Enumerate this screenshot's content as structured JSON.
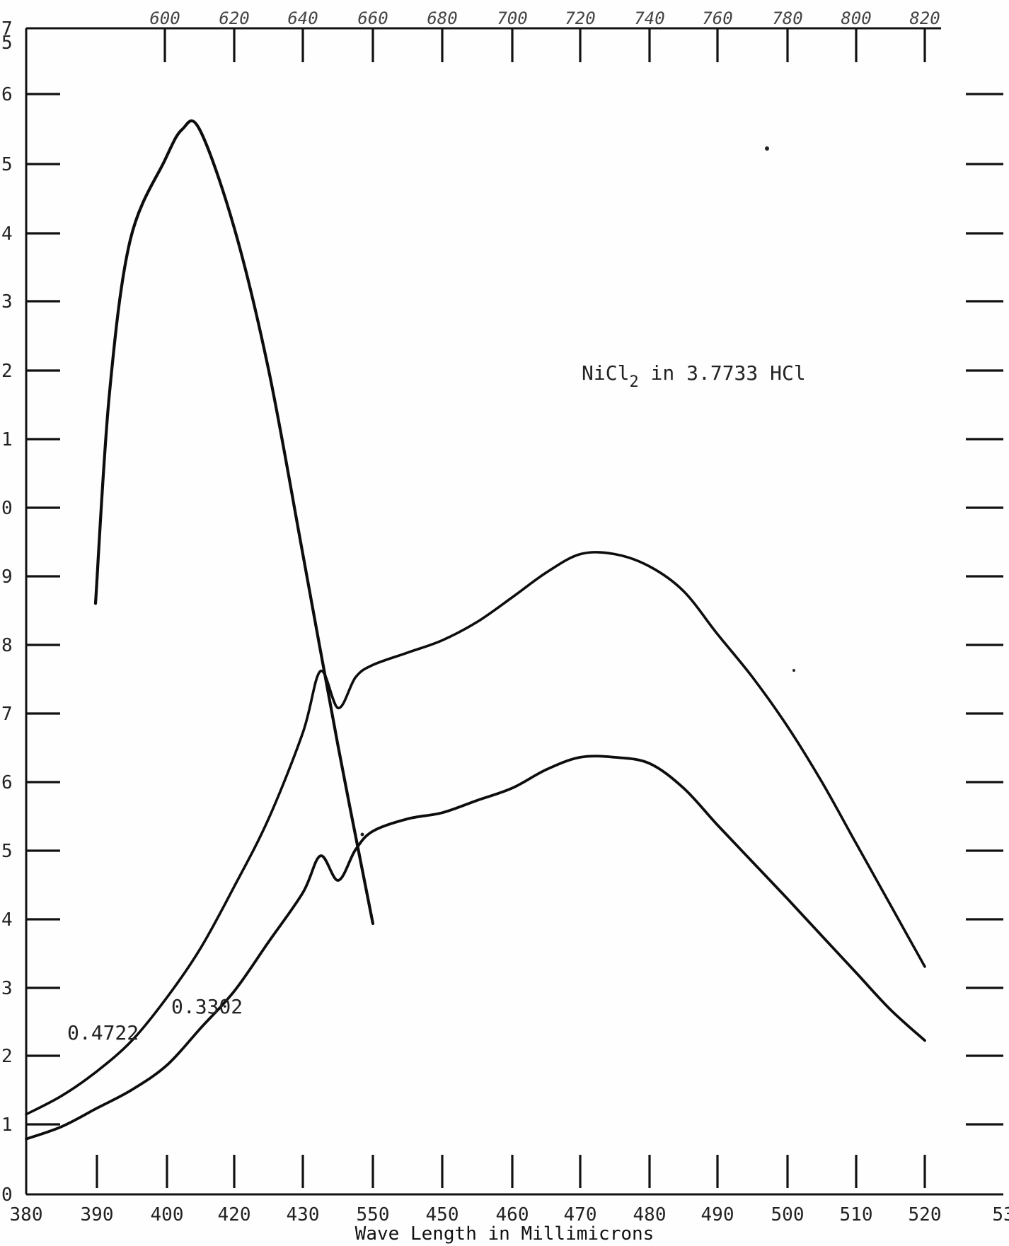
{
  "chart_data": {
    "type": "line",
    "title": "",
    "annotation_label": "NiCl",
    "annotation_subscript": "2",
    "annotation_rest": " in 3.7733 HCl",
    "xlabel": "Wave Length in Millimicrons",
    "ylabel": "",
    "bottom_axis": {
      "tick_labels": [
        "380",
        "390",
        "400",
        "420",
        "430",
        "550",
        "450",
        "460",
        "470",
        "480",
        "490",
        "500",
        "510",
        "520",
        "53"
      ],
      "range": [
        380,
        530
      ]
    },
    "top_axis": {
      "tick_labels": [
        "600",
        "620",
        "640",
        "660",
        "680",
        "700",
        "720",
        "740",
        "760",
        "780",
        "800",
        "820"
      ],
      "range": [
        590,
        830
      ]
    },
    "left_axis_labels": [
      "0",
      "1",
      "2",
      "3",
      "4",
      "5",
      "6",
      "7",
      "8",
      "9",
      "0",
      "1",
      "2",
      "3",
      "4",
      "5",
      "6",
      "5",
      "7"
    ],
    "y_range": [
      0,
      1.8
    ],
    "grid": false,
    "series": [
      {
        "name": "",
        "axis": "top",
        "x": [
          590,
          592,
          595,
          600,
          605,
          610,
          620,
          630,
          640,
          650,
          660
        ],
        "y": [
          0.96,
          1.3,
          1.55,
          1.68,
          1.73,
          1.73,
          1.57,
          1.34,
          1.04,
          0.73,
          0.44
        ]
      },
      {
        "name": "0.4722",
        "axis": "bottom",
        "x": [
          380,
          385,
          390,
          395,
          400,
          405,
          410,
          415,
          420,
          425,
          430,
          435,
          440,
          445,
          450,
          455,
          460,
          465,
          470,
          475,
          480,
          485,
          490,
          495,
          500,
          505,
          510,
          515,
          520
        ],
        "y": [
          0.13,
          0.16,
          0.2,
          0.25,
          0.32,
          0.4,
          0.5,
          0.61,
          0.75,
          0.85,
          0.79,
          0.84,
          0.86,
          0.88,
          0.9,
          0.93,
          0.97,
          1.01,
          1.04,
          1.04,
          1.02,
          0.98,
          0.91,
          0.84,
          0.76,
          0.67,
          0.57,
          0.47,
          0.37
        ]
      },
      {
        "name": "0.3302",
        "axis": "bottom",
        "x": [
          380,
          385,
          390,
          395,
          400,
          405,
          410,
          415,
          420,
          425,
          430,
          435,
          440,
          445,
          450,
          455,
          460,
          465,
          470,
          475,
          480,
          485,
          490,
          495,
          500,
          505,
          510,
          515,
          520
        ],
        "y": [
          0.09,
          0.11,
          0.14,
          0.17,
          0.21,
          0.27,
          0.33,
          0.41,
          0.49,
          0.55,
          0.51,
          0.56,
          0.59,
          0.61,
          0.62,
          0.64,
          0.66,
          0.69,
          0.71,
          0.71,
          0.7,
          0.66,
          0.6,
          0.54,
          0.48,
          0.42,
          0.36,
          0.3,
          0.25
        ]
      }
    ]
  }
}
